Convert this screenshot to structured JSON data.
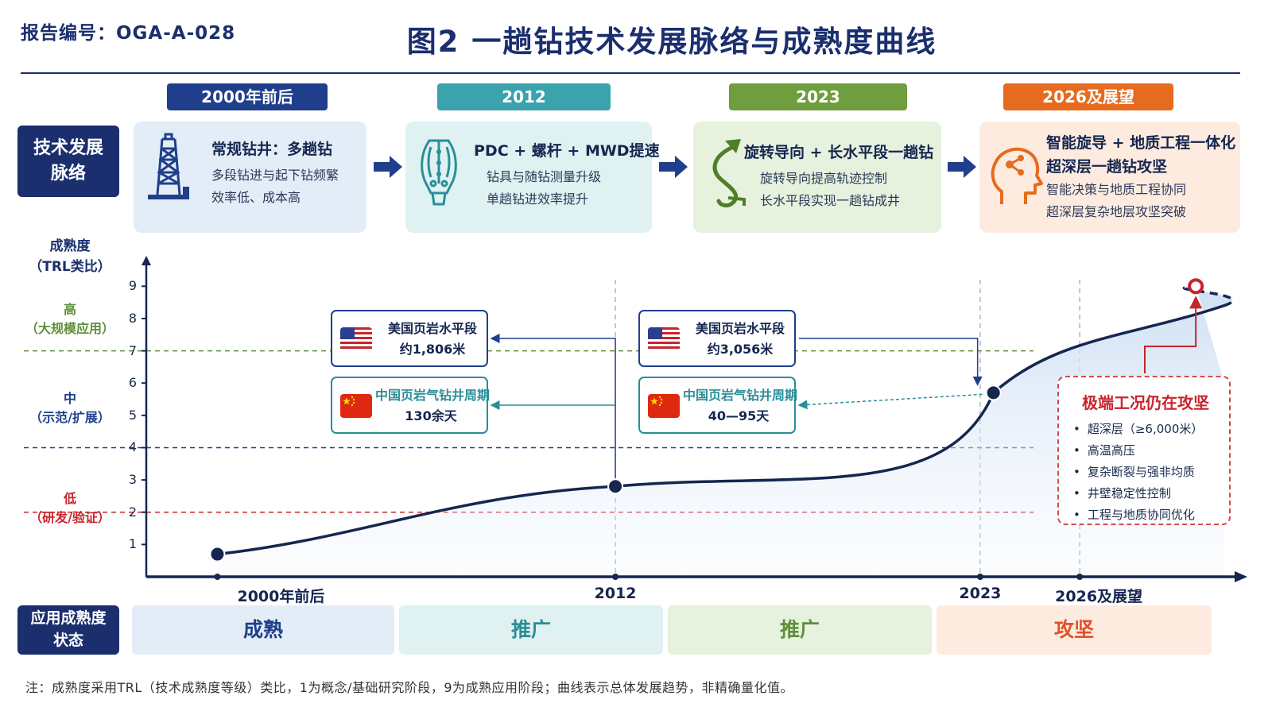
{
  "report_no": "报告编号：OGA-A-028",
  "title": "图2 一趟钻技术发展脉络与成熟度曲线",
  "row_labels": {
    "tech": "技术发展\n脉络",
    "maturity": "应用成熟度\n状态"
  },
  "eras": [
    {
      "label": "2000年前后",
      "color": "#1f3f8c"
    },
    {
      "label": "2012",
      "color": "#3aa3ad"
    },
    {
      "label": "2023",
      "color": "#6f9e3e"
    },
    {
      "label": "2026及展望",
      "color": "#e66b1e"
    }
  ],
  "cards": [
    {
      "title": "常规钻井：多趟钻",
      "lines": [
        "多段钻进与起下钻频繁",
        "效率低、成本高"
      ],
      "icon": "drilling-rig-icon",
      "bg": "#e3edf8"
    },
    {
      "title": "PDC + 螺杆 + MWD提速",
      "lines": [
        "钻具与随钻测量升级",
        "单趟钻进效率提升"
      ],
      "icon": "pdc-bit-icon",
      "bg": "#dff1f1"
    },
    {
      "title": "旋转导向 + 长水平段一趟钻",
      "lines": [
        "旋转导向提高轨迹控制",
        "长水平段实现一趟钻成井"
      ],
      "icon": "directional-well-icon",
      "bg": "#e6f1de"
    },
    {
      "title": "智能旋导 + 地质工程一体化",
      "title2": "超深层一趟钻攻坚",
      "lines": [
        "智能决策与地质工程协同",
        "超深层复杂地层攻坚突破"
      ],
      "icon": "ai-brain-icon",
      "bg": "#fdebdf"
    }
  ],
  "chart_data": {
    "type": "line",
    "ylabel": "成熟度\n（TRL类比）",
    "ylim": [
      0,
      9.5
    ],
    "yticks": [
      "1",
      "2",
      "3",
      "4",
      "5",
      "6",
      "7",
      "8",
      "9"
    ],
    "x_labels": [
      "2000年前后",
      "2012",
      "2023",
      "2026及展望"
    ],
    "x_positions": [
      0,
      12,
      23,
      26
    ],
    "xlim": [
      -2,
      30
    ],
    "levels": [
      {
        "label": "高",
        "sub": "（大规模应用）",
        "threshold": 7,
        "color": "#5f8f3a"
      },
      {
        "label": "中",
        "sub": "（示范/扩展）",
        "threshold": 4,
        "color": "#1f3f8c"
      },
      {
        "label": "低",
        "sub": "（研发/验证）",
        "threshold": 2,
        "color": "#c8242c"
      }
    ],
    "milestones": [
      {
        "x": 0,
        "y": 0.7
      },
      {
        "x": 12,
        "y": 2.8
      },
      {
        "x": 23.4,
        "y": 5.7
      }
    ],
    "target": {
      "x": 29.5,
      "y": 9.0
    },
    "callouts": {
      "y2012": {
        "us": [
          "美国页岩水平段",
          "约1,806米"
        ],
        "cn": [
          "中国页岩气钻井周期",
          "130余天"
        ]
      },
      "y2023": {
        "us": [
          "美国页岩水平段",
          "约3,056米"
        ],
        "cn": [
          "中国页岩气钻井周期",
          "40—95天"
        ]
      }
    }
  },
  "extreme": {
    "title": "极端工况仍在攻坚",
    "items": [
      "超深层（≥6,000米）",
      "高温高压",
      "复杂断裂与强非均质",
      "井壁稳定性控制",
      "工程与地质协同优化"
    ]
  },
  "stages": [
    {
      "label": "成熟",
      "bg": "#e3edf8",
      "color": "#1f3f8c"
    },
    {
      "label": "推广",
      "bg": "#dff1f1",
      "color": "#2a8e98"
    },
    {
      "label": "推广",
      "bg": "#e6f1de",
      "color": "#5f8f3a"
    },
    {
      "label": "攻坚",
      "bg": "#fdebdf",
      "color": "#e0512a"
    }
  ],
  "note": "注：成熟度采用TRL（技术成熟度等级）类比，1为概念/基础研究阶段，9为成熟应用阶段；曲线表示总体发展趋势，非精确量化值。"
}
